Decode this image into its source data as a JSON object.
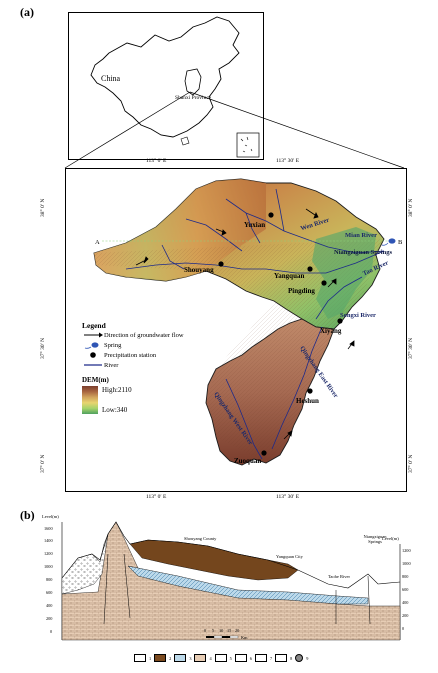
{
  "panel_a_label": "(a)",
  "panel_b_label": "(b)",
  "inset": {
    "country_label": "China",
    "province_label": "Shanxi Province"
  },
  "map": {
    "coords_top": [
      "113° 0′ E",
      "113° 30′ E"
    ],
    "coords_bottom": [
      "113° 0′ E",
      "113° 30′ E"
    ],
    "coords_left": [
      "38° 0′ N",
      "37° 30′ N",
      "37° 0′ N"
    ],
    "coords_right": [
      "38° 0′ N",
      "37° 30′ N",
      "37° 0′ N"
    ],
    "towns": [
      "Yuxian",
      "Shouyang",
      "Yangquan",
      "Pingding",
      "Xiyang",
      "Heshun",
      "Zuoquan"
    ],
    "rivers": [
      "Wen River",
      "Mian River",
      "Tao River",
      "Songxi River",
      "Qingzhang East River",
      "Qingzhang West River"
    ],
    "spring_label": "Niangziguan Springs",
    "section_end_a": "A",
    "section_end_b": "B"
  },
  "legend": {
    "title": "Legend",
    "flow": "Direction of groundwater flow",
    "spring": "Spring",
    "station": "Precipitation station",
    "river": "River",
    "dem_title": "DEM(m)",
    "dem_high": "High:2110",
    "dem_low": "Low:340"
  },
  "section": {
    "left_axis_title": "Level(m)",
    "right_axis_title": "Level(m)",
    "left_ticks": [
      "1600",
      "1400",
      "1200",
      "1000",
      "800",
      "600",
      "400",
      "200",
      "0"
    ],
    "right_ticks": [
      "1200",
      "1000",
      "800",
      "600",
      "400",
      "200",
      "0"
    ],
    "labels": {
      "county": "Shouyang County",
      "city": "Yangquan City",
      "river": "Taohe River",
      "springs": "Niangziguan Springs"
    },
    "scale_ticks": [
      "0",
      "5",
      "10",
      "15",
      "20"
    ],
    "scale_unit": "Km",
    "key_numbers": [
      "1",
      "2",
      "3",
      "4",
      "5",
      "6",
      "7",
      "8",
      "9"
    ]
  }
}
